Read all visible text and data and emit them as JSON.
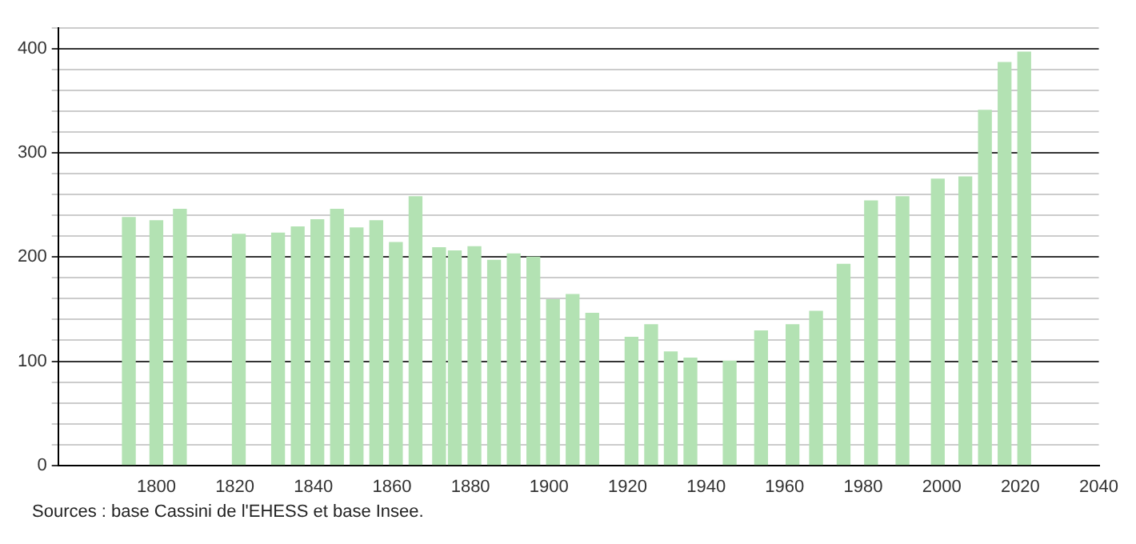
{
  "chart_data": {
    "type": "bar",
    "x": [
      1793,
      1800,
      1806,
      1821,
      1831,
      1836,
      1841,
      1846,
      1851,
      1856,
      1861,
      1866,
      1872,
      1876,
      1881,
      1886,
      1891,
      1896,
      1901,
      1906,
      1911,
      1921,
      1926,
      1931,
      1936,
      1946,
      1954,
      1962,
      1968,
      1975,
      1982,
      1990,
      1999,
      2006,
      2011,
      2016,
      2021
    ],
    "values": [
      238,
      235,
      246,
      222,
      223,
      229,
      236,
      246,
      228,
      235,
      214,
      258,
      209,
      206,
      210,
      197,
      203,
      200,
      159,
      164,
      146,
      123,
      135,
      109,
      103,
      100,
      129,
      135,
      148,
      193,
      254,
      258,
      275,
      277,
      341,
      387,
      397
    ],
    "color": "#b3e2b3",
    "xlim": [
      1775,
      2040
    ],
    "xticks": [
      1800,
      1820,
      1840,
      1860,
      1880,
      1900,
      1920,
      1940,
      1960,
      1980,
      2000,
      2020,
      2040
    ],
    "ylim": [
      0,
      420
    ],
    "yticks": [
      0,
      {
        "value": 20,
        "label": null
      },
      {
        "value": 40,
        "label": null
      },
      {
        "value": 60,
        "label": null
      },
      {
        "value": 80,
        "label": null
      },
      100,
      {
        "value": 120,
        "label": null
      },
      {
        "value": 140,
        "label": null
      },
      {
        "value": 160,
        "label": null
      },
      {
        "value": 180,
        "label": null
      },
      200,
      {
        "value": 220,
        "label": null
      },
      {
        "value": 240,
        "label": null
      },
      {
        "value": 260,
        "label": null
      },
      {
        "value": 280,
        "label": null
      },
      300,
      {
        "value": 320,
        "label": null
      },
      {
        "value": 340,
        "label": null
      },
      {
        "value": 360,
        "label": null
      },
      {
        "value": 380,
        "label": null
      },
      400,
      {
        "value": 420,
        "label": null
      }
    ],
    "grid": "y",
    "annotations": [
      "Sources : base Cassini de l'EHESS et base Insee."
    ]
  }
}
